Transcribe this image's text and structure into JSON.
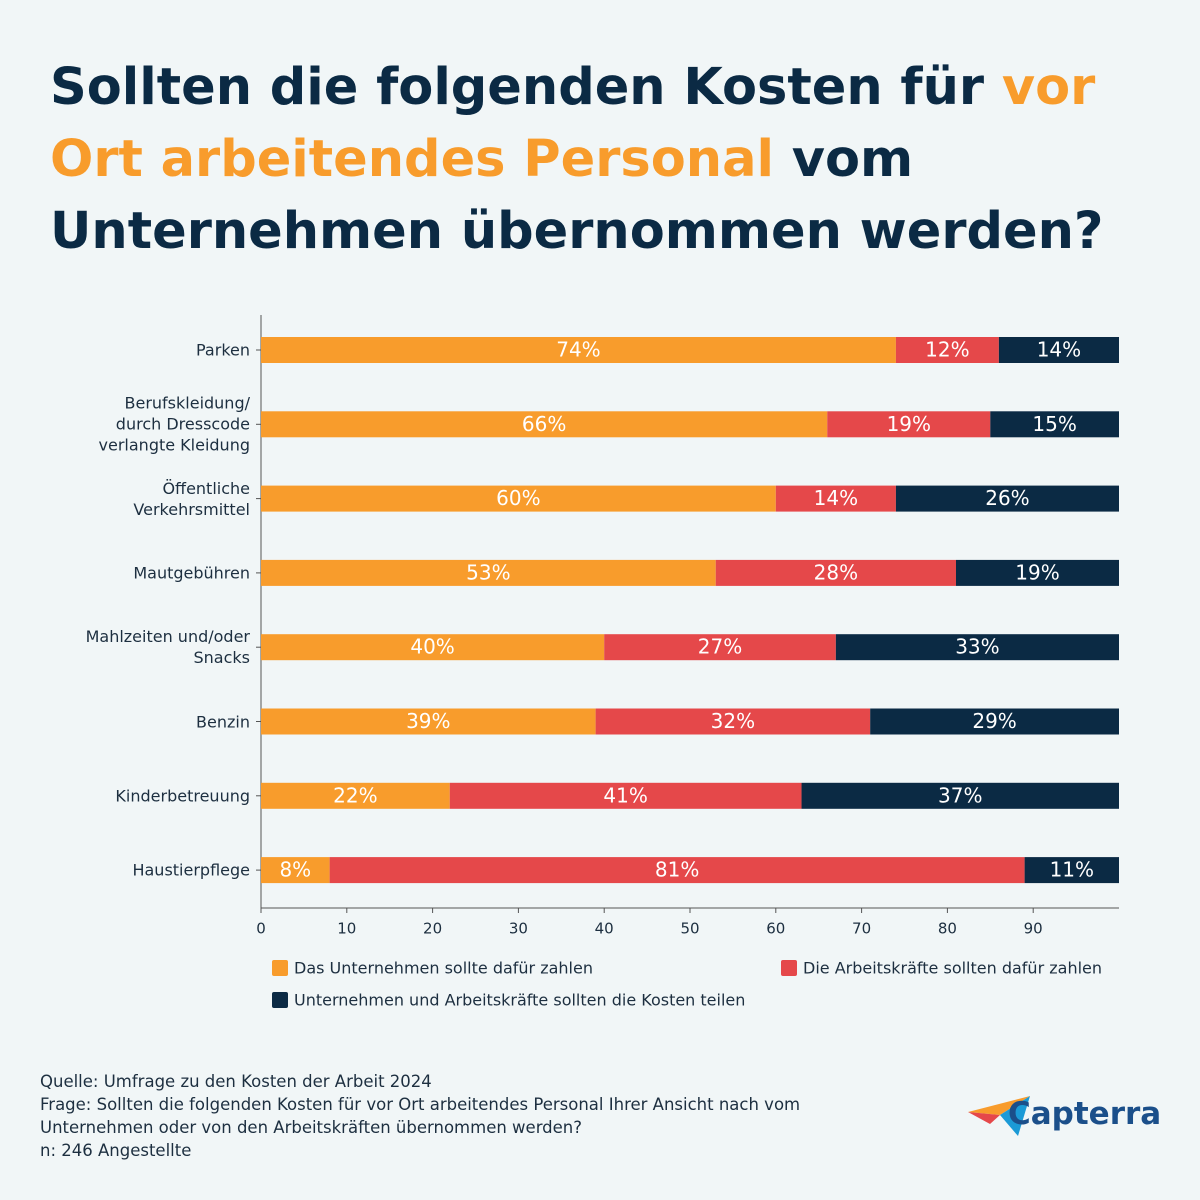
{
  "chart_data": {
    "type": "stacked_bar_horizontal",
    "title_parts": [
      "Sollten die folgenden Kosten für ",
      "vor Ort arbeitendes Personal",
      " vom Unternehmen übernommen werden?"
    ],
    "categories": [
      "Parken",
      "Berufskleidung/\ndurch Dresscode\nverlangte Kleidung",
      "Öffentliche\nVerkehrsmittel",
      "Mautgebühren",
      "Mahlzeiten und/oder\nSnacks",
      "Benzin",
      "Kinderbetreuung",
      "Haustierpflege"
    ],
    "series": [
      {
        "name": "Das Unternehmen sollte dafür zahlen",
        "color": "#f89c2c",
        "values": [
          74,
          66,
          60,
          53,
          40,
          39,
          22,
          8
        ],
        "value_labels": [
          "74%",
          "66%",
          "60%",
          "53%",
          "40%",
          "39%",
          "22%",
          "8%"
        ]
      },
      {
        "name": "Die Arbeitskräfte sollten dafür zahlen",
        "color": "#e5484a",
        "values": [
          12,
          19,
          14,
          28,
          27,
          32,
          41,
          81
        ],
        "value_labels": [
          "12%",
          "19%",
          "14%",
          "28%",
          "27%",
          "32%",
          "41%",
          "81%"
        ]
      },
      {
        "name": "Unternehmen und Arbeitskräfte sollten die Kosten teilen",
        "color": "#0b2a44",
        "values": [
          14,
          15,
          26,
          19,
          33,
          29,
          37,
          11
        ],
        "value_labels": [
          "14%",
          "15%",
          "26%",
          "19%",
          "33%",
          "29%",
          "37%",
          "11%"
        ]
      }
    ],
    "xlim": [
      0,
      100
    ],
    "xticks": [
      0,
      10,
      20,
      30,
      40,
      50,
      60,
      70,
      80,
      90
    ],
    "grid": false,
    "legend": "bottom"
  },
  "footer": {
    "source": "Quelle: Umfrage zu den Kosten der Arbeit 2024",
    "question": "Frage: Sollten die folgenden Kosten für vor Ort arbeitendes Personal Ihrer Ansicht nach vom Unternehmen oder von den Arbeitskräften übernommen werden?",
    "n": "n: 246 Angestellte",
    "logo": "Capterra"
  }
}
